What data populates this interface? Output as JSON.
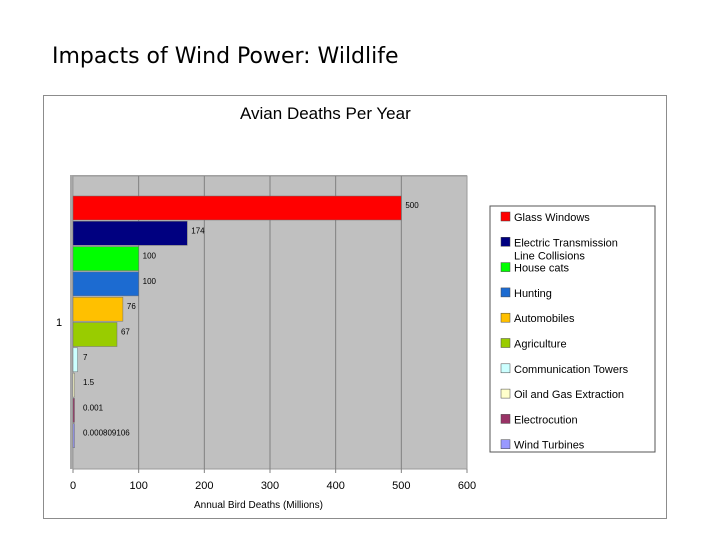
{
  "slide": {
    "title": "Impacts of Wind Power: Wildlife"
  },
  "chart_data": {
    "type": "bar",
    "orientation": "horizontal",
    "title": "Avian Deaths Per Year",
    "xlabel": "Annual Bird Deaths (Millions)",
    "ylabel": "",
    "xlim": [
      0,
      600
    ],
    "xticks": [
      0,
      100,
      200,
      300,
      400,
      500,
      600
    ],
    "grid": true,
    "legend_position": "right",
    "category_labels": [
      "1"
    ],
    "series": [
      {
        "name": "Glass Windows",
        "value": 500,
        "label": "500",
        "color": "#ff0000"
      },
      {
        "name": "Electric Transmission Line Collisions",
        "legend_lines": [
          "Electric Transmission",
          "Line Collisions"
        ],
        "value": 174,
        "label": "174",
        "color": "#000080"
      },
      {
        "name": "House cats",
        "value": 100,
        "label": "100",
        "color": "#00ff00"
      },
      {
        "name": "Hunting",
        "value": 100,
        "label": "100",
        "color": "#1c6bd1"
      },
      {
        "name": "Automobiles",
        "value": 76,
        "label": "76",
        "color": "#ffc000"
      },
      {
        "name": "Agriculture",
        "value": 67,
        "label": "67",
        "color": "#99cc00"
      },
      {
        "name": "Communication Towers",
        "value": 7,
        "label": "7",
        "color": "#ccffff"
      },
      {
        "name": "Oil and Gas Extraction",
        "value": 1.5,
        "label": "1.5",
        "color": "#ffffcc"
      },
      {
        "name": "Electrocution",
        "value": 0.001,
        "label": "0.001",
        "color": "#993366"
      },
      {
        "name": "Wind Turbines",
        "value": 0.000809106,
        "label": "0.000809106",
        "color": "#9999ff"
      }
    ],
    "colors": {
      "plot_background": "#c0c0c0",
      "gridline": "#808080"
    }
  }
}
